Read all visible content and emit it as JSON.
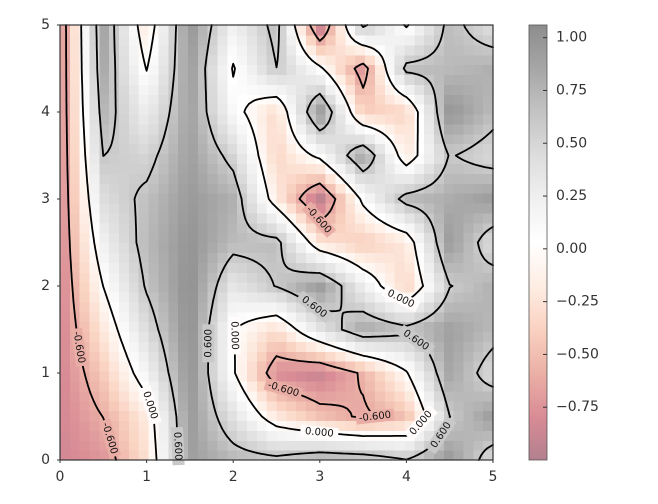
{
  "chart_data": {
    "type": "contour",
    "x": [
      0,
      0.5,
      1,
      1.5,
      2,
      2.5,
      3,
      3.5,
      4,
      4.5,
      5
    ],
    "y": [
      0,
      0.5,
      1,
      1.5,
      2,
      2.5,
      3,
      3.5,
      4,
      4.5,
      5
    ],
    "z": [
      [
        -0.839,
        -0.736,
        -0.275,
        0.916,
        0.735,
        0.678,
        0.831,
        0.786,
        0.61,
        0.973,
        0.419
      ],
      [
        -0.839,
        -0.595,
        -0.188,
        0.958,
        0.384,
        -0.196,
        -0.479,
        -0.642,
        -0.49,
        0.596,
        0.94
      ],
      [
        -0.839,
        -0.417,
        0.18,
        1.009,
        0.035,
        -0.794,
        -0.898,
        -0.556,
        -0.028,
        0.871,
        0.441
      ],
      [
        -0.839,
        -0.213,
        0.44,
        1.042,
        0.009,
        -0.296,
        0.351,
        0.84,
        0.688,
        0.902,
        0.719
      ],
      [
        -0.839,
        0.004,
        0.634,
        1.039,
        0.329,
        0.615,
        0.948,
        0.258,
        -0.369,
        0.588,
        0.773
      ],
      [
        -0.839,
        0.222,
        0.717,
        1.002,
        0.702,
        0.693,
        -0.218,
        -0.425,
        -0.205,
        0.952,
        0.409
      ],
      [
        -0.839,
        0.425,
        0.668,
        0.95,
        0.785,
        -0.17,
        -0.979,
        0.074,
        0.716,
        0.809,
        0.938
      ],
      [
        -0.839,
        0.602,
        0.499,
        0.912,
        0.5,
        -0.358,
        0.079,
        0.906,
        -0.215,
        0.624,
        0.454
      ],
      [
        -0.839,
        0.741,
        0.252,
        0.907,
        0.111,
        -0.321,
        0.99,
        -0.397,
        -0.361,
        0.999,
        0.701
      ],
      [
        -0.839,
        0.834,
        -0.014,
        0.939,
        -0.026,
        0.597,
        0.061,
        -0.763,
        0.691,
        0.713,
        0.79
      ],
      [
        -0.839,
        0.876,
        -0.233,
        0.991,
        0.216,
        0.706,
        -0.981,
        0.67,
        -0.039,
        0.697,
        0.401
      ]
    ],
    "xlim": [
      0,
      5
    ],
    "ylim": [
      0,
      5
    ],
    "xticks": [
      0,
      1,
      2,
      3,
      4,
      5
    ],
    "yticks": [
      0,
      1,
      2,
      3,
      4,
      5
    ],
    "levels": [
      {
        "value": -0.6,
        "label": "-0.600"
      },
      {
        "value": 0,
        "label": "0.000"
      },
      {
        "value": 0.6,
        "label": "0.600"
      }
    ],
    "line_color": "#000000",
    "colormap": [
      "#67001f",
      "#b2182b",
      "#d6604d",
      "#f4a582",
      "#fddbc7",
      "#ffffff",
      "#e0e0e0",
      "#bababa",
      "#878787",
      "#4d4d4d",
      "#1a1a1a"
    ],
    "alpha": 0.5,
    "clim": [
      -1.0,
      1.06
    ],
    "colorbar_ticks": [
      {
        "value": 1.0,
        "label": "1.00"
      },
      {
        "value": 0.75,
        "label": "0.75"
      },
      {
        "value": 0.5,
        "label": "0.50"
      },
      {
        "value": 0.25,
        "label": "0.25"
      },
      {
        "value": 0,
        "label": "0.00"
      },
      {
        "value": -0.25,
        "label": "−0.25"
      },
      {
        "value": -0.5,
        "label": "−0.50"
      },
      {
        "value": -0.75,
        "label": "−0.75"
      }
    ]
  }
}
